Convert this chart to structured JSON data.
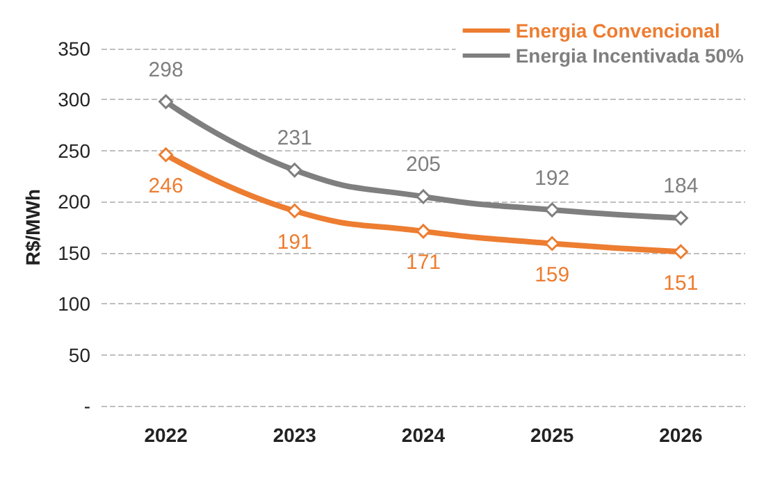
{
  "chart_data": {
    "type": "line",
    "ylabel": "R$/MWh",
    "categories": [
      "2022",
      "2023",
      "2024",
      "2025",
      "2026"
    ],
    "series": [
      {
        "name": "Energia Convencional",
        "color": "#ed7d31",
        "values": [
          246,
          191,
          171,
          159,
          151
        ]
      },
      {
        "name": "Energia Incentivada 50%",
        "color": "#7f7f7f",
        "values": [
          298,
          231,
          205,
          192,
          184
        ]
      }
    ],
    "ylim": [
      0,
      350
    ],
    "yticks": [
      {
        "value": 0,
        "label": "-"
      },
      50,
      100,
      150,
      200,
      250,
      300,
      350
    ],
    "grid": "y",
    "legend": "top right",
    "marker": "diamond",
    "line_style": "solid",
    "data_labels": true
  }
}
